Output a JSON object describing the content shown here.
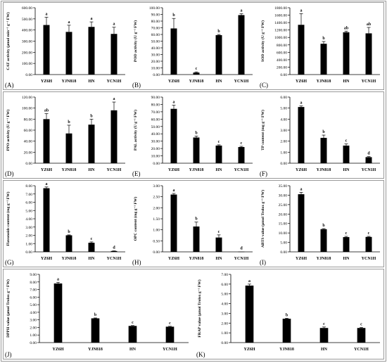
{
  "chart_data": [
    {
      "id": "A",
      "type": "bar",
      "panel_label": "(A)",
      "ylabel": "CAT activity (μmol min⁻¹ g⁻¹ FW)",
      "categories": [
        "YZ6H",
        "YJN818",
        "HN",
        "YCN1H"
      ],
      "values": [
        445,
        383,
        428,
        365
      ],
      "errors": [
        70,
        60,
        45,
        60
      ],
      "letters": [
        "a",
        "a",
        "a",
        "a"
      ],
      "ylim": [
        0,
        600
      ],
      "ticks": [
        0,
        100,
        200,
        300,
        400,
        500,
        600
      ],
      "tick_labels": [
        "0.00",
        "100.00",
        "200.00",
        "300.00",
        "400.00",
        "500.00",
        "600.00"
      ]
    },
    {
      "id": "B",
      "type": "bar",
      "panel_label": "(B)",
      "ylabel": "POD activity (U g⁻¹ FW)",
      "categories": [
        "YZ6H",
        "YJN818",
        "HN",
        "YCN1H"
      ],
      "values": [
        69,
        3,
        59,
        89
      ],
      "errors": [
        15,
        1,
        1,
        2
      ],
      "letters": [
        "b",
        "c",
        "b",
        "a"
      ],
      "ylim": [
        0,
        100
      ],
      "ticks": [
        0,
        10,
        20,
        30,
        40,
        50,
        60,
        70,
        80,
        90,
        100
      ],
      "tick_labels": [
        "0.00",
        "10.00",
        "20.00",
        "30.00",
        "40.00",
        "50.00",
        "60.00",
        "70.00",
        "80.00",
        "90.00",
        "100.00"
      ]
    },
    {
      "id": "C",
      "type": "bar",
      "panel_label": "(C)",
      "ylabel": "SOD activity (U g⁻¹ FW)",
      "categories": [
        "YZ6H",
        "YJN818",
        "HN",
        "YCN1H"
      ],
      "values": [
        1340,
        830,
        1140,
        1110
      ],
      "errors": [
        300,
        60,
        30,
        160
      ],
      "letters": [
        "a",
        "b",
        "ab",
        "ab"
      ],
      "ylim": [
        0,
        1800
      ],
      "ticks": [
        0,
        200,
        400,
        600,
        800,
        1000,
        1200,
        1400,
        1600,
        1800
      ],
      "tick_labels": [
        "0.00",
        "200.00",
        "400.00",
        "600.00",
        "800.00",
        "1000.00",
        "1200.00",
        "1400.00",
        "1600.00",
        "1800.00"
      ]
    },
    {
      "id": "D",
      "type": "bar",
      "panel_label": "(D)",
      "ylabel": "PPO activity (U g⁻¹ FW)",
      "categories": [
        "YZ6H",
        "YJN818",
        "HN",
        "YCN1H"
      ],
      "values": [
        80,
        54,
        70,
        96
      ],
      "errors": [
        10,
        15,
        10,
        15
      ],
      "letters": [
        "ab",
        "b",
        "b",
        "a"
      ],
      "ylim": [
        0,
        120
      ],
      "ticks": [
        0,
        20,
        40,
        60,
        80,
        100,
        120
      ],
      "tick_labels": [
        "0.00",
        "20.00",
        "40.00",
        "60.00",
        "80.00",
        "100.00",
        "120.00"
      ]
    },
    {
      "id": "E",
      "type": "bar",
      "panel_label": "(E)",
      "ylabel": "PAL activity (U g⁻¹ FW)",
      "categories": [
        "YZ6H",
        "YJN818",
        "HN",
        "YCN1H"
      ],
      "values": [
        74,
        35,
        24,
        22
      ],
      "errors": [
        5,
        2,
        1,
        1
      ],
      "letters": [
        "a",
        "b",
        "c",
        "c"
      ],
      "ylim": [
        0,
        90
      ],
      "ticks": [
        0,
        10,
        20,
        30,
        40,
        50,
        60,
        70,
        80,
        90
      ],
      "tick_labels": [
        "0.00",
        "10.00",
        "20.00",
        "30.00",
        "40.00",
        "50.00",
        "60.00",
        "70.00",
        "80.00",
        "90.00"
      ]
    },
    {
      "id": "F",
      "type": "bar",
      "panel_label": "(F)",
      "ylabel": "TP content (mg g⁻¹ FW)",
      "categories": [
        "YZ6H",
        "YJN818",
        "HN",
        "YCN1H"
      ],
      "values": [
        5.1,
        2.3,
        1.6,
        0.55
      ],
      "errors": [
        0.1,
        0.25,
        0.15,
        0.05
      ],
      "letters": [
        "a",
        "b",
        "c",
        "d"
      ],
      "ylim": [
        0,
        6
      ],
      "ticks": [
        0,
        1,
        2,
        3,
        4,
        5,
        6
      ],
      "tick_labels": [
        "0.00",
        "1.00",
        "2.00",
        "3.00",
        "4.00",
        "5.00",
        "6.00"
      ]
    },
    {
      "id": "G",
      "type": "bar",
      "panel_label": "(G)",
      "ylabel": "Flavonoids content (mg g⁻¹ FW)",
      "categories": [
        "YZ6H",
        "YJN818",
        "HN",
        "YCN1H"
      ],
      "values": [
        7.7,
        2.0,
        1.1,
        0.1
      ],
      "errors": [
        0.15,
        0.05,
        0.1,
        0.02
      ],
      "letters": [
        "a",
        "b",
        "c",
        "d"
      ],
      "ylim": [
        0,
        8
      ],
      "ticks": [
        0,
        1,
        2,
        3,
        4,
        5,
        6,
        7,
        8
      ],
      "tick_labels": [
        "0.00",
        "1.00",
        "2.00",
        "3.00",
        "4.00",
        "5.00",
        "6.00",
        "7.00",
        "8.00"
      ]
    },
    {
      "id": "H",
      "type": "bar",
      "panel_label": "(H)",
      "ylabel": "OPC content (mg g⁻¹ FW)",
      "categories": [
        "YZ6H",
        "YJN818",
        "HN",
        "YCN1H"
      ],
      "values": [
        2.6,
        1.15,
        0.65,
        0.01
      ],
      "errors": [
        0.05,
        0.2,
        0.12,
        0.0
      ],
      "letters": [
        "a",
        "b",
        "c",
        "d"
      ],
      "ylim": [
        0,
        3
      ],
      "ticks": [
        0,
        0.5,
        1,
        1.5,
        2,
        2.5,
        3
      ],
      "tick_labels": [
        "0.00",
        "0.50",
        "1.00",
        "1.50",
        "2.00",
        "2.50",
        "3.00"
      ]
    },
    {
      "id": "I",
      "type": "bar",
      "panel_label": "(I)",
      "ylabel": "ABTS value (μmol Trolox g⁻¹ FW)",
      "categories": [
        "YZ6H",
        "YJN818",
        "HN",
        "YCN1H"
      ],
      "values": [
        30.5,
        12,
        7.8,
        7.9
      ],
      "errors": [
        1,
        0.3,
        0.4,
        0.3
      ],
      "letters": [
        "a",
        "b",
        "c",
        "c"
      ],
      "ylim": [
        0,
        35
      ],
      "ticks": [
        0,
        5,
        10,
        15,
        20,
        25,
        30,
        35
      ],
      "tick_labels": [
        "0.00",
        "5.00",
        "10.00",
        "15.00",
        "20.00",
        "25.00",
        "30.00",
        "35.00"
      ]
    },
    {
      "id": "J",
      "type": "bar",
      "panel_label": "(J)",
      "ylabel": "DPPH value (μmol Trolox g⁻¹ FW)",
      "categories": [
        "YZ6H",
        "YJN818",
        "HN",
        "YCN1H"
      ],
      "values": [
        7.8,
        3.2,
        2.2,
        2.1
      ],
      "errors": [
        0.15,
        0.05,
        0.05,
        0.05
      ],
      "letters": [
        "a",
        "b",
        "c",
        "c"
      ],
      "ylim": [
        0,
        9
      ],
      "ticks": [
        0,
        1,
        2,
        3,
        4,
        5,
        6,
        7,
        8,
        9
      ],
      "tick_labels": [
        "0.00",
        "1.00",
        "2.00",
        "3.00",
        "4.00",
        "5.00",
        "6.00",
        "7.00",
        "8.00",
        "9.00"
      ]
    },
    {
      "id": "K",
      "type": "bar",
      "panel_label": "(K)",
      "ylabel": "FRAP value (μmol Trolox g⁻¹ FW)",
      "categories": [
        "YZ6H",
        "YJN818",
        "HN",
        "YCN1H"
      ],
      "values": [
        5.85,
        2.45,
        1.5,
        1.5
      ],
      "errors": [
        0.15,
        0.05,
        0.1,
        0.05
      ],
      "letters": [
        "a",
        "b",
        "c",
        "c"
      ],
      "ylim": [
        0,
        7
      ],
      "ticks": [
        0,
        1,
        2,
        3,
        4,
        5,
        6,
        7
      ],
      "tick_labels": [
        "0.00",
        "1.00",
        "2.00",
        "3.00",
        "4.00",
        "5.00",
        "6.00",
        "7.00"
      ]
    }
  ]
}
